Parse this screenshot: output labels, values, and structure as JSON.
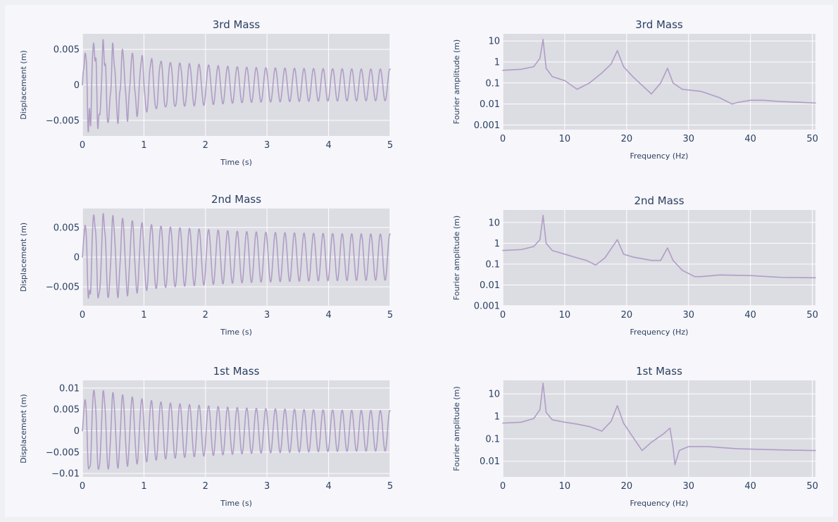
{
  "style": {
    "trace_color": "#b09dc6",
    "plot_bg": "#dcdce3",
    "paper_bg": "#f6f6fb",
    "text_color": "#2a3f5f"
  },
  "chart_data": [
    {
      "type": "line",
      "title": "3rd Mass",
      "xlabel": "Time (s)",
      "ylabel": "Displacement (m)",
      "xlim": [
        0,
        5
      ],
      "ylim": [
        -0.0072,
        0.0072
      ],
      "xticks": [
        0,
        1,
        2,
        3,
        4,
        5
      ],
      "xtick_labels": [
        "0",
        "1",
        "2",
        "3",
        "4",
        "5"
      ],
      "yticks": [
        -0.005,
        0,
        0.005
      ],
      "ytick_labels": [
        "−0.005",
        "0",
        "0.005"
      ],
      "signal": {
        "freq_hz": 6.45,
        "peak": 0.0066,
        "steady": 0.0022,
        "decay": 1.0,
        "beat": [
          {
            "f": 18.6,
            "a": 0.0022,
            "d": 0.55
          },
          {
            "f": 26.6,
            "a": 0.0012,
            "d": 0.45
          }
        ]
      }
    },
    {
      "type": "line",
      "title": "3rd Mass",
      "xlabel": "Frequency (Hz)",
      "ylabel": "Fourier amplitude (m)",
      "log_y": true,
      "xlim": [
        0,
        50.5
      ],
      "ylim": [
        0.0006,
        22
      ],
      "xticks": [
        0,
        10,
        20,
        30,
        40,
        50
      ],
      "xtick_labels": [
        "0",
        "10",
        "20",
        "30",
        "40",
        "50"
      ],
      "yticks": [
        0.001,
        0.01,
        0.1,
        1,
        10
      ],
      "ytick_labels": [
        "0.001",
        "0.01",
        "0.1",
        "1",
        "10"
      ],
      "x": [
        0,
        3,
        5,
        6,
        6.5,
        7,
        8,
        10,
        12,
        14,
        16,
        17.5,
        18.5,
        19.5,
        21,
        24,
        25.5,
        26.6,
        27.5,
        29,
        32,
        35,
        37,
        38,
        40,
        42,
        45,
        48,
        50.5
      ],
      "y": [
        0.4,
        0.45,
        0.6,
        1.5,
        12,
        0.5,
        0.2,
        0.13,
        0.05,
        0.1,
        0.3,
        0.8,
        3.5,
        0.6,
        0.2,
        0.03,
        0.1,
        0.5,
        0.1,
        0.05,
        0.04,
        0.02,
        0.01,
        0.012,
        0.015,
        0.015,
        0.013,
        0.012,
        0.011
      ]
    },
    {
      "type": "line",
      "title": "2nd Mass",
      "xlabel": "Time (s)",
      "ylabel": "Displacement (m)",
      "xlim": [
        0,
        5
      ],
      "ylim": [
        -0.0082,
        0.0082
      ],
      "xticks": [
        0,
        1,
        2,
        3,
        4,
        5
      ],
      "xtick_labels": [
        "0",
        "1",
        "2",
        "3",
        "4",
        "5"
      ],
      "yticks": [
        -0.005,
        0,
        0.005
      ],
      "ytick_labels": [
        "−0.005",
        "0",
        "0.005"
      ],
      "signal": {
        "freq_hz": 6.45,
        "peak": 0.0078,
        "steady": 0.0038,
        "decay": 1.3,
        "beat": [
          {
            "f": 18.6,
            "a": 0.0015,
            "d": 0.5
          },
          {
            "f": 26.6,
            "a": 0.0007,
            "d": 0.4
          }
        ]
      }
    },
    {
      "type": "line",
      "title": "2nd Mass",
      "xlabel": "Frequency (Hz)",
      "ylabel": "Fourier amplitude (m)",
      "log_y": true,
      "xlim": [
        0,
        50.5
      ],
      "ylim": [
        0.001,
        40
      ],
      "xticks": [
        0,
        10,
        20,
        30,
        40,
        50
      ],
      "xtick_labels": [
        "0",
        "10",
        "20",
        "30",
        "40",
        "50"
      ],
      "yticks": [
        0.001,
        0.01,
        0.1,
        1,
        10
      ],
      "ytick_labels": [
        "0.001",
        "0.01",
        "0.1",
        "1",
        "10"
      ],
      "x": [
        0,
        3,
        5,
        6,
        6.5,
        7,
        8,
        10,
        12,
        13.5,
        15,
        16.5,
        18.5,
        19.5,
        21,
        24,
        25.5,
        26.6,
        27.5,
        29,
        31,
        32,
        35,
        40,
        45,
        50.5
      ],
      "y": [
        0.45,
        0.5,
        0.7,
        1.5,
        22,
        1.0,
        0.45,
        0.3,
        0.2,
        0.15,
        0.09,
        0.2,
        1.5,
        0.3,
        0.22,
        0.15,
        0.15,
        0.6,
        0.15,
        0.05,
        0.025,
        0.025,
        0.03,
        0.028,
        0.023,
        0.022
      ]
    },
    {
      "type": "line",
      "title": "1st Mass",
      "xlabel": "Time (s)",
      "ylabel": "Displacement (m)",
      "xlim": [
        0,
        5
      ],
      "ylim": [
        -0.0108,
        0.0118
      ],
      "xticks": [
        0,
        1,
        2,
        3,
        4,
        5
      ],
      "xtick_labels": [
        "0",
        "1",
        "2",
        "3",
        "4",
        "5"
      ],
      "yticks": [
        -0.01,
        -0.005,
        0,
        0.005,
        0.01
      ],
      "ytick_labels": [
        "−0.01",
        "−0.005",
        "0",
        "0.005",
        "0.01"
      ],
      "signal": {
        "freq_hz": 6.45,
        "peak": 0.0105,
        "steady": 0.0046,
        "decay": 1.3,
        "beat": [
          {
            "f": 18.6,
            "a": 0.0012,
            "d": 0.5
          },
          {
            "f": 26.6,
            "a": 0.0005,
            "d": 0.4
          }
        ]
      }
    },
    {
      "type": "line",
      "title": "1st Mass",
      "xlabel": "Frequency (Hz)",
      "ylabel": "Fourier amplitude (m)",
      "log_y": true,
      "xlim": [
        0,
        50.5
      ],
      "ylim": [
        0.002,
        40
      ],
      "xticks": [
        0,
        10,
        20,
        30,
        40,
        50
      ],
      "xtick_labels": [
        "0",
        "10",
        "20",
        "30",
        "40",
        "50"
      ],
      "yticks": [
        0.01,
        0.1,
        1,
        10
      ],
      "ytick_labels": [
        "0.01",
        "0.1",
        "1",
        "10"
      ],
      "x": [
        0,
        3,
        5,
        6,
        6.5,
        7,
        8,
        10,
        12,
        14,
        16,
        17.5,
        18.5,
        19.5,
        21,
        22.5,
        24,
        26,
        27,
        27.5,
        27.8,
        28.5,
        30,
        33,
        38,
        45,
        50.5
      ],
      "y": [
        0.5,
        0.55,
        0.8,
        2.0,
        30,
        1.5,
        0.7,
        0.55,
        0.45,
        0.35,
        0.22,
        0.6,
        3.0,
        0.5,
        0.12,
        0.03,
        0.07,
        0.17,
        0.3,
        0.04,
        0.007,
        0.03,
        0.045,
        0.045,
        0.036,
        0.032,
        0.03
      ]
    }
  ]
}
